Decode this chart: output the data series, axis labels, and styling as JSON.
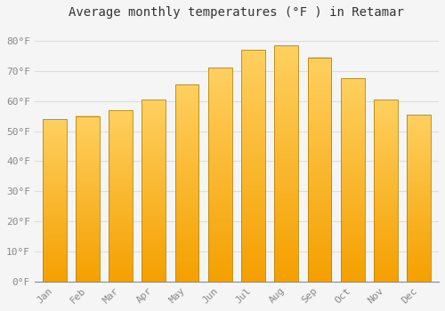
{
  "title": "Average monthly temperatures (°F ) in Retamar",
  "months": [
    "Jan",
    "Feb",
    "Mar",
    "Apr",
    "May",
    "Jun",
    "Jul",
    "Aug",
    "Sep",
    "Oct",
    "Nov",
    "Dec"
  ],
  "values": [
    54,
    55,
    57,
    60.5,
    65.5,
    71,
    77,
    78.5,
    74.5,
    67.5,
    60.5,
    55.5
  ],
  "bar_color_top": "#FDB520",
  "bar_color_bottom": "#F5A800",
  "bar_edge_color": "#B8860B",
  "background_color": "#f5f5f5",
  "ylim": [
    0,
    85
  ],
  "yticks": [
    0,
    10,
    20,
    30,
    40,
    50,
    60,
    70,
    80
  ],
  "ytick_labels": [
    "0°F",
    "10°F",
    "20°F",
    "30°F",
    "40°F",
    "50°F",
    "60°F",
    "70°F",
    "80°F"
  ],
  "grid_color": "#dddddd",
  "title_fontsize": 10,
  "tick_fontsize": 8,
  "tick_color": "#888888",
  "bar_width": 0.72
}
